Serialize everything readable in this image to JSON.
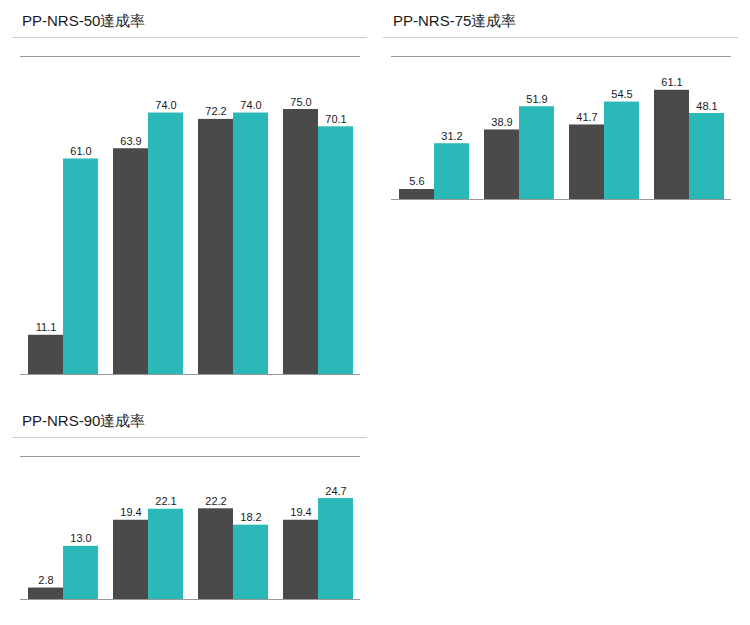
{
  "chart_data": [
    {
      "type": "bar",
      "title": "PP-NRS-50達成率",
      "categories": [
        null,
        null,
        null,
        null
      ],
      "series": [
        {
          "color": "#4a4a4a",
          "values": [
            11.1,
            63.9,
            72.2,
            75.0
          ],
          "value_labels": [
            "11.1",
            "63.9",
            "72.2",
            "75.0"
          ]
        },
        {
          "color": "#2bb8b8",
          "values": [
            61.0,
            74.0,
            74.0,
            70.1
          ],
          "value_labels": [
            "61.0",
            "74.0",
            "74.0",
            "70.1"
          ]
        }
      ],
      "ylim": [
        0,
        90
      ],
      "data_labels": true,
      "tick_labels": false
    },
    {
      "type": "bar",
      "title": "PP-NRS-75達成率",
      "categories": [
        null,
        null,
        null,
        null
      ],
      "series": [
        {
          "color": "#4a4a4a",
          "values": [
            5.6,
            38.9,
            41.7,
            61.1
          ],
          "value_labels": [
            "5.6",
            "38.9",
            "41.7",
            "61.1"
          ]
        },
        {
          "color": "#2bb8b8",
          "values": [
            31.2,
            51.9,
            54.5,
            48.1
          ],
          "value_labels": [
            "31.2",
            "51.9",
            "54.5",
            "48.1"
          ]
        }
      ],
      "ylim": [
        0,
        80
      ],
      "data_labels": true,
      "tick_labels": false
    },
    {
      "type": "bar",
      "title": "PP-NRS-90達成率",
      "categories": [
        null,
        null,
        null,
        null
      ],
      "series": [
        {
          "color": "#4a4a4a",
          "values": [
            2.8,
            19.4,
            22.2,
            19.4
          ],
          "value_labels": [
            "2.8",
            "19.4",
            "22.2",
            "19.4"
          ]
        },
        {
          "color": "#2bb8b8",
          "values": [
            13.0,
            22.1,
            18.2,
            24.7
          ],
          "value_labels": [
            "13.0",
            "22.1",
            "18.2",
            "24.7"
          ]
        }
      ],
      "ylim": [
        0,
        35
      ],
      "data_labels": true,
      "tick_labels": false
    }
  ]
}
